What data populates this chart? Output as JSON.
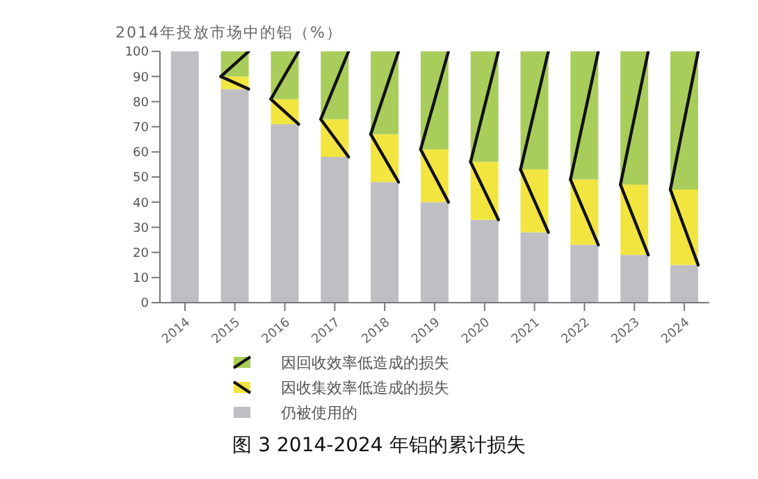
{
  "chart_data": {
    "type": "bar",
    "stacked": true,
    "title": "图 3  2014-2024 年铝的累计损失",
    "ylabel": "2014年投放市场中的铝（%）",
    "categories": [
      "2014",
      "2015",
      "2016",
      "2017",
      "2018",
      "2019",
      "2020",
      "2021",
      "2022",
      "2023",
      "2024"
    ],
    "series": [
      {
        "name": "仍被使用的",
        "color": "#bfbfc3",
        "values": [
          100,
          85,
          71,
          58,
          48,
          40,
          33,
          28,
          23,
          19,
          15
        ]
      },
      {
        "name": "因收集效率低造成的损失",
        "color": "#f3e53f",
        "values": [
          0,
          5,
          10,
          15,
          19,
          21,
          23,
          25,
          26,
          28,
          30
        ]
      },
      {
        "name": "因回收效率低造成的损失",
        "color": "#a9cd5b",
        "values": [
          0,
          10,
          19,
          27,
          33,
          39,
          44,
          47,
          51,
          53,
          55
        ]
      }
    ],
    "ylim": [
      0,
      100
    ],
    "yticks": [
      0,
      10,
      20,
      30,
      40,
      50,
      60,
      70,
      80,
      90,
      100
    ],
    "legend": "bottom"
  }
}
